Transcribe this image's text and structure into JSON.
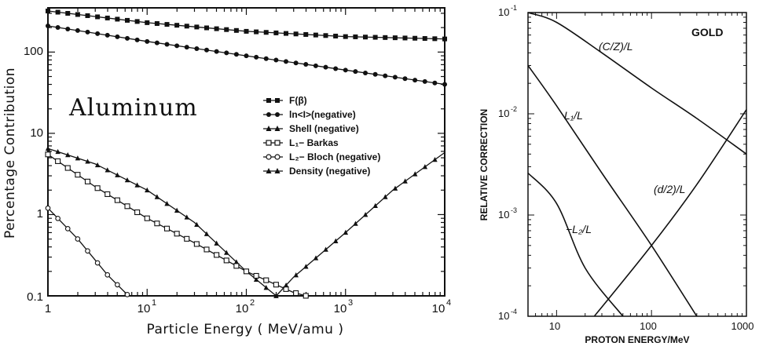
{
  "chart_data": [
    {
      "type": "line",
      "xscale": "log",
      "yscale": "log",
      "xlim": [
        1,
        10000
      ],
      "ylim": [
        0.1,
        350
      ],
      "xticks": [
        "1",
        "10",
        "10",
        "10",
        "10"
      ],
      "xtick_exponents": [
        "",
        "1",
        "2",
        "3",
        "4"
      ],
      "yticks": [
        "0.1",
        "1",
        "10",
        "100"
      ],
      "xlabel": "Particle Energy ( MeV/amu )",
      "ylabel": "Percentage Contribution",
      "annotation": "Aluminum",
      "legend_position": "center",
      "series": [
        {
          "name": "F(β)",
          "marker": "filled-square",
          "x": [
            1,
            10,
            100,
            1000,
            10000
          ],
          "y": [
            320,
            230,
            180,
            155,
            145
          ]
        },
        {
          "name": "ln<I>(negative)",
          "marker": "filled-circle",
          "x": [
            1,
            10,
            100,
            1000,
            10000
          ],
          "y": [
            210,
            135,
            90,
            60,
            40
          ]
        },
        {
          "name": "Shell (negative)",
          "marker": "filled-triangle",
          "x": [
            1,
            3,
            10,
            30,
            100,
            200
          ],
          "y": [
            6.5,
            4.2,
            2.0,
            0.8,
            0.2,
            0.1
          ]
        },
        {
          "name": "L₁− Barkas",
          "marker": "open-square",
          "x": [
            1,
            3,
            10,
            30,
            100,
            300,
            400
          ],
          "y": [
            5.5,
            2.2,
            0.9,
            0.45,
            0.2,
            0.11,
            0.1
          ]
        },
        {
          "name": "L₂− Bloch (negative)",
          "marker": "open-circle",
          "x": [
            1,
            2,
            4,
            6.5
          ],
          "y": [
            1.2,
            0.5,
            0.18,
            0.1
          ]
        },
        {
          "name": "Density (negative)",
          "marker": "filled-triangle",
          "x": [
            200,
            300,
            1000,
            3000,
            10000
          ],
          "y": [
            0.1,
            0.17,
            0.6,
            2.0,
            5.8
          ]
        }
      ]
    },
    {
      "type": "line",
      "xscale": "log",
      "yscale": "log",
      "xlim": [
        5,
        1000
      ],
      "ylim": [
        0.0001,
        0.1
      ],
      "xticks": [
        "10",
        "100",
        "1000"
      ],
      "yticks": [
        "10",
        "10",
        "10",
        "10"
      ],
      "ytick_exponents": [
        "-4",
        "-3",
        "-2",
        "-1"
      ],
      "xlabel": "PROTON ENERGY/MeV",
      "ylabel": "RELATIVE CORRECTION",
      "title": "GOLD",
      "series": [
        {
          "name": "(C/Z)/L",
          "x": [
            5,
            10,
            30,
            100,
            300,
            1000
          ],
          "y": [
            0.1,
            0.08,
            0.04,
            0.018,
            0.009,
            0.004
          ]
        },
        {
          "name": "L₁/L",
          "x": [
            5,
            10,
            30,
            100,
            300
          ],
          "y": [
            0.03,
            0.012,
            0.0026,
            0.0005,
            0.0001
          ]
        },
        {
          "name": "−L₂/L",
          "x": [
            5,
            10,
            20,
            50
          ],
          "y": [
            0.0026,
            0.0013,
            0.0003,
            0.0001
          ]
        },
        {
          "name": "(d/2)/L",
          "x": [
            25,
            100,
            300,
            1000
          ],
          "y": [
            0.0001,
            0.0005,
            0.002,
            0.011
          ]
        }
      ]
    }
  ],
  "legend": {
    "items": [
      "F(β)",
      "ln<I>(negative)",
      "Shell (negative)",
      "L₁− Barkas",
      "L₂− Bloch (negative)",
      "Density (negative)"
    ]
  }
}
